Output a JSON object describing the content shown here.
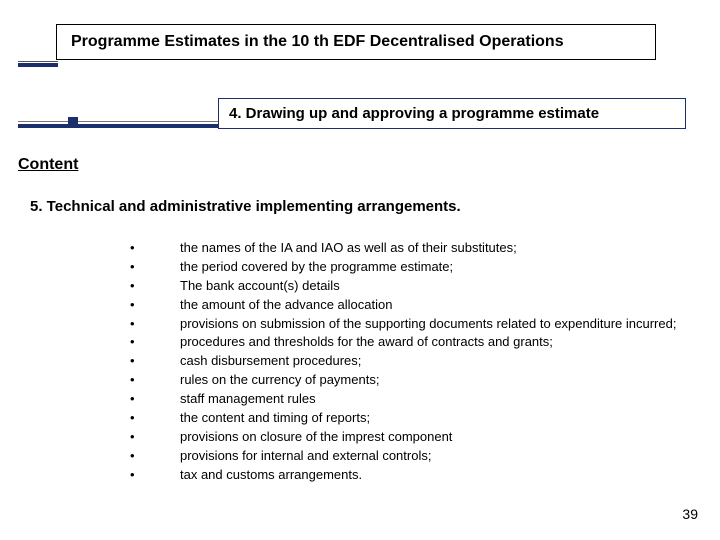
{
  "title": "Programme Estimates in the 10 th EDF Decentralised Operations",
  "subtitle": "4. Drawing up and approving a programme estimate",
  "content_label": "Content",
  "section_heading": "5. Technical and administrative implementing arrangements.",
  "bullets": [
    "the names of the IA and IAO as well as of their substitutes;",
    "the period covered by the programme estimate;",
    "The bank account(s) details",
    "the amount of the advance allocation",
    "provisions on submission of the supporting documents related to expenditure incurred;",
    "procedures and thresholds for the award of contracts and grants;",
    "cash disbursement procedures;",
    "rules on the currency of payments;",
    "staff management rules",
    "the content and timing of reports;",
    "provisions on closure of the imprest component",
    "provisions for internal and external controls;",
    "tax and customs arrangements."
  ],
  "page_number": "39",
  "colors": {
    "accent": "#1a2f6b",
    "text": "#000000",
    "background": "#ffffff"
  }
}
